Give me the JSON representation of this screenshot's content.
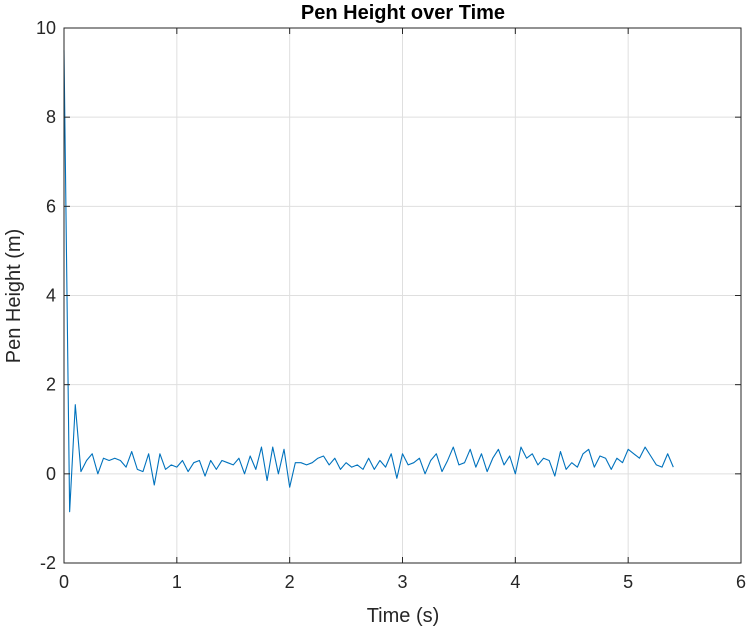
{
  "chart_data": {
    "type": "line",
    "title": "Pen Height over Time",
    "xlabel": "Time (s)",
    "ylabel": "Pen Height (m)",
    "xlim": [
      0,
      6
    ],
    "ylim": [
      -2,
      10
    ],
    "xticks": [
      0,
      1,
      2,
      3,
      4,
      5,
      6
    ],
    "yticks": [
      -2,
      0,
      2,
      4,
      6,
      8,
      10
    ],
    "grid": true,
    "series_color": "#0072BD",
    "series": [
      {
        "x": [
          0,
          0.05,
          0.1,
          0.15,
          0.2,
          0.25,
          0.3,
          0.35,
          0.4,
          0.45,
          0.5,
          0.55,
          0.6,
          0.65,
          0.7,
          0.75,
          0.8,
          0.85,
          0.9,
          0.95,
          1.0,
          1.05,
          1.1,
          1.15,
          1.2,
          1.25,
          1.3,
          1.35,
          1.4,
          1.45,
          1.5,
          1.55,
          1.6,
          1.65,
          1.7,
          1.75,
          1.8,
          1.85,
          1.9,
          1.95,
          2.0,
          2.05,
          2.1,
          2.15,
          2.2,
          2.25,
          2.3,
          2.35,
          2.4,
          2.45,
          2.5,
          2.55,
          2.6,
          2.65,
          2.7,
          2.75,
          2.8,
          2.85,
          2.9,
          2.95,
          3.0,
          3.05,
          3.1,
          3.15,
          3.2,
          3.25,
          3.3,
          3.35,
          3.4,
          3.45,
          3.5,
          3.55,
          3.6,
          3.65,
          3.7,
          3.75,
          3.8,
          3.85,
          3.9,
          3.95,
          4.0,
          4.05,
          4.1,
          4.15,
          4.2,
          4.25,
          4.3,
          4.35,
          4.4,
          4.45,
          4.5,
          4.55,
          4.6,
          4.65,
          4.7,
          4.75,
          4.8,
          4.85,
          4.9,
          4.95,
          5.0,
          5.05,
          5.1,
          5.15,
          5.2,
          5.25,
          5.3,
          5.35,
          5.4
        ],
        "y": [
          9.5,
          -0.85,
          1.55,
          0.05,
          0.3,
          0.45,
          0.0,
          0.35,
          0.3,
          0.35,
          0.3,
          0.15,
          0.5,
          0.1,
          0.05,
          0.45,
          -0.25,
          0.45,
          0.1,
          0.2,
          0.15,
          0.3,
          0.05,
          0.25,
          0.3,
          -0.05,
          0.3,
          0.1,
          0.3,
          0.25,
          0.2,
          0.35,
          0.0,
          0.4,
          0.1,
          0.6,
          -0.15,
          0.6,
          0.0,
          0.55,
          -0.3,
          0.25,
          0.25,
          0.2,
          0.25,
          0.35,
          0.4,
          0.2,
          0.35,
          0.1,
          0.25,
          0.15,
          0.2,
          0.1,
          0.35,
          0.1,
          0.3,
          0.15,
          0.45,
          -0.1,
          0.45,
          0.2,
          0.25,
          0.35,
          0.0,
          0.3,
          0.45,
          0.05,
          0.3,
          0.6,
          0.2,
          0.25,
          0.55,
          0.15,
          0.45,
          0.05,
          0.35,
          0.55,
          0.2,
          0.4,
          0.0,
          0.6,
          0.35,
          0.45,
          0.2,
          0.35,
          0.3,
          -0.05,
          0.5,
          0.1,
          0.25,
          0.15,
          0.45,
          0.55,
          0.15,
          0.4,
          0.35,
          0.1,
          0.35,
          0.25,
          0.55,
          0.45,
          0.35,
          0.6,
          0.4,
          0.2,
          0.15,
          0.45,
          0.15
        ]
      }
    ]
  }
}
